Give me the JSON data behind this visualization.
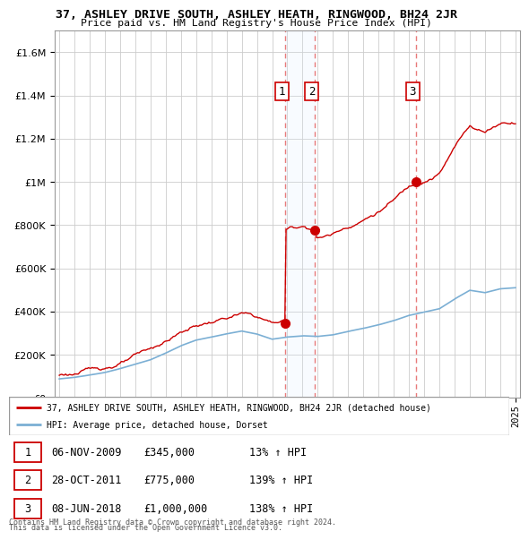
{
  "title": "37, ASHLEY DRIVE SOUTH, ASHLEY HEATH, RINGWOOD, BH24 2JR",
  "subtitle": "Price paid vs. HM Land Registry's House Price Index (HPI)",
  "legend_line1": "37, ASHLEY DRIVE SOUTH, ASHLEY HEATH, RINGWOOD, BH24 2JR (detached house)",
  "legend_line2": "HPI: Average price, detached house, Dorset",
  "sale_color": "#cc0000",
  "hpi_color": "#7bafd4",
  "vline_color": "#e87a7a",
  "shade_color": "#ddeeff",
  "transactions": [
    {
      "label": "1",
      "date_str": "06-NOV-2009",
      "year": 2009.85,
      "price": 345000
    },
    {
      "label": "2",
      "date_str": "28-OCT-2011",
      "year": 2011.82,
      "price": 775000
    },
    {
      "label": "3",
      "date_str": "08-JUN-2018",
      "year": 2018.44,
      "price": 1000000
    }
  ],
  "table_rows": [
    [
      "1",
      "06-NOV-2009",
      "£345,000",
      "13% ↑ HPI"
    ],
    [
      "2",
      "28-OCT-2011",
      "£775,000",
      "139% ↑ HPI"
    ],
    [
      "3",
      "08-JUN-2018",
      "£1,000,000",
      "138% ↑ HPI"
    ]
  ],
  "footnote1": "Contains HM Land Registry data © Crown copyright and database right 2024.",
  "footnote2": "This data is licensed under the Open Government Licence v3.0.",
  "ylim": [
    0,
    1700000
  ],
  "yticks": [
    0,
    200000,
    400000,
    600000,
    800000,
    1000000,
    1200000,
    1400000,
    1600000
  ],
  "xlim_start": 1994.7,
  "xlim_end": 2025.3
}
